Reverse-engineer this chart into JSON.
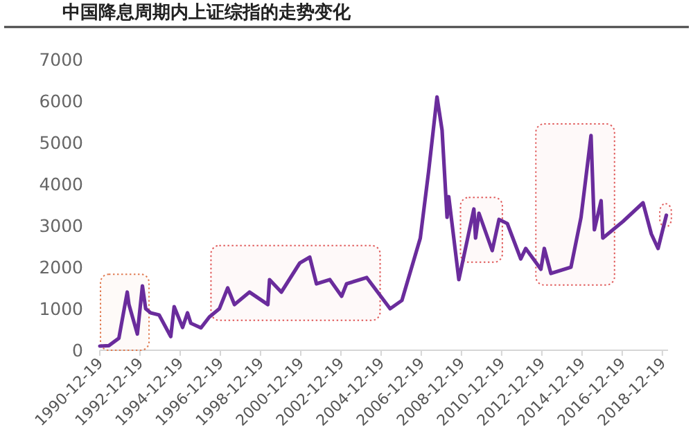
{
  "chart_data": {
    "type": "line",
    "title": "中国降息周期内上证综指的走势变化",
    "x": [
      "1990-12-19",
      "1991-06",
      "1991-12",
      "1992-05",
      "1992-06",
      "1992-11",
      "1993-02",
      "1993-04",
      "1993-07",
      "1993-12",
      "1994-07",
      "1994-09",
      "1995-02",
      "1995-05",
      "1995-07",
      "1996-01",
      "1996-06",
      "1996-12",
      "1997-05",
      "1997-09",
      "1998-06",
      "1999-05",
      "1999-06",
      "2000-01",
      "2000-12",
      "2001-06",
      "2001-10",
      "2002-06",
      "2003-01",
      "2003-04",
      "2004-04",
      "2005-06",
      "2006-01",
      "2006-12",
      "2007-05",
      "2007-10",
      "2008-01",
      "2008-04",
      "2008-05",
      "2008-11",
      "2009-08",
      "2009-09",
      "2009-11",
      "2010-07",
      "2010-11",
      "2011-04",
      "2011-12",
      "2012-03",
      "2012-12",
      "2013-02",
      "2013-06",
      "2014-06",
      "2014-12",
      "2015-06",
      "2015-08",
      "2015-12",
      "2016-01",
      "2017-01",
      "2018-01",
      "2018-06",
      "2018-10",
      "2019-03"
    ],
    "series": [
      {
        "color": "#6a2c9c",
        "values": [
          100,
          110,
          290,
          1400,
          1100,
          390,
          1550,
          1000,
          900,
          850,
          330,
          1050,
          550,
          900,
          650,
          540,
          800,
          1000,
          1500,
          1100,
          1400,
          1100,
          1700,
          1400,
          2100,
          2240,
          1600,
          1700,
          1300,
          1600,
          1750,
          1000,
          1200,
          2700,
          4300,
          6100,
          5300,
          3200,
          3700,
          1700,
          3400,
          2700,
          3300,
          2400,
          3150,
          3050,
          2200,
          2450,
          1950,
          2450,
          1850,
          2000,
          3200,
          5170,
          2900,
          3600,
          2700,
          3100,
          3550,
          2800,
          2450,
          3250
        ]
      }
    ],
    "xlim": [
      "1990-12-19",
      "2019-04"
    ],
    "xticks": [
      "1990-12-19",
      "1992-12-19",
      "1994-12-19",
      "1996-12-19",
      "1998-12-19",
      "2000-12-19",
      "2002-12-19",
      "2004-12-19",
      "2006-12-19",
      "2008-12-19",
      "2010-12-19",
      "2012-12-19",
      "2014-12-19",
      "2016-12-19",
      "2018-12-19"
    ],
    "ylim": [
      0,
      7000
    ],
    "yticks": [
      0,
      1000,
      2000,
      3000,
      4000,
      5000,
      6000,
      7000
    ],
    "bands": [
      {
        "axis": "x",
        "from": "1991-01",
        "to": "1993-06",
        "color": "#e07a50"
      },
      {
        "axis": "x",
        "from": "1996-07",
        "to": "2004-12",
        "color": "#e05a5a"
      },
      {
        "axis": "x",
        "from": "2008-12",
        "to": "2011-01",
        "color": "#e05a5a"
      },
      {
        "axis": "x",
        "from": "2012-09",
        "to": "2016-08",
        "color": "#e05a5a"
      },
      {
        "axis": "x",
        "from": "2018-11",
        "to": "2019-06",
        "color": "#e05a5a"
      }
    ],
    "grid": false,
    "marker": "none",
    "line_style": "solid"
  }
}
